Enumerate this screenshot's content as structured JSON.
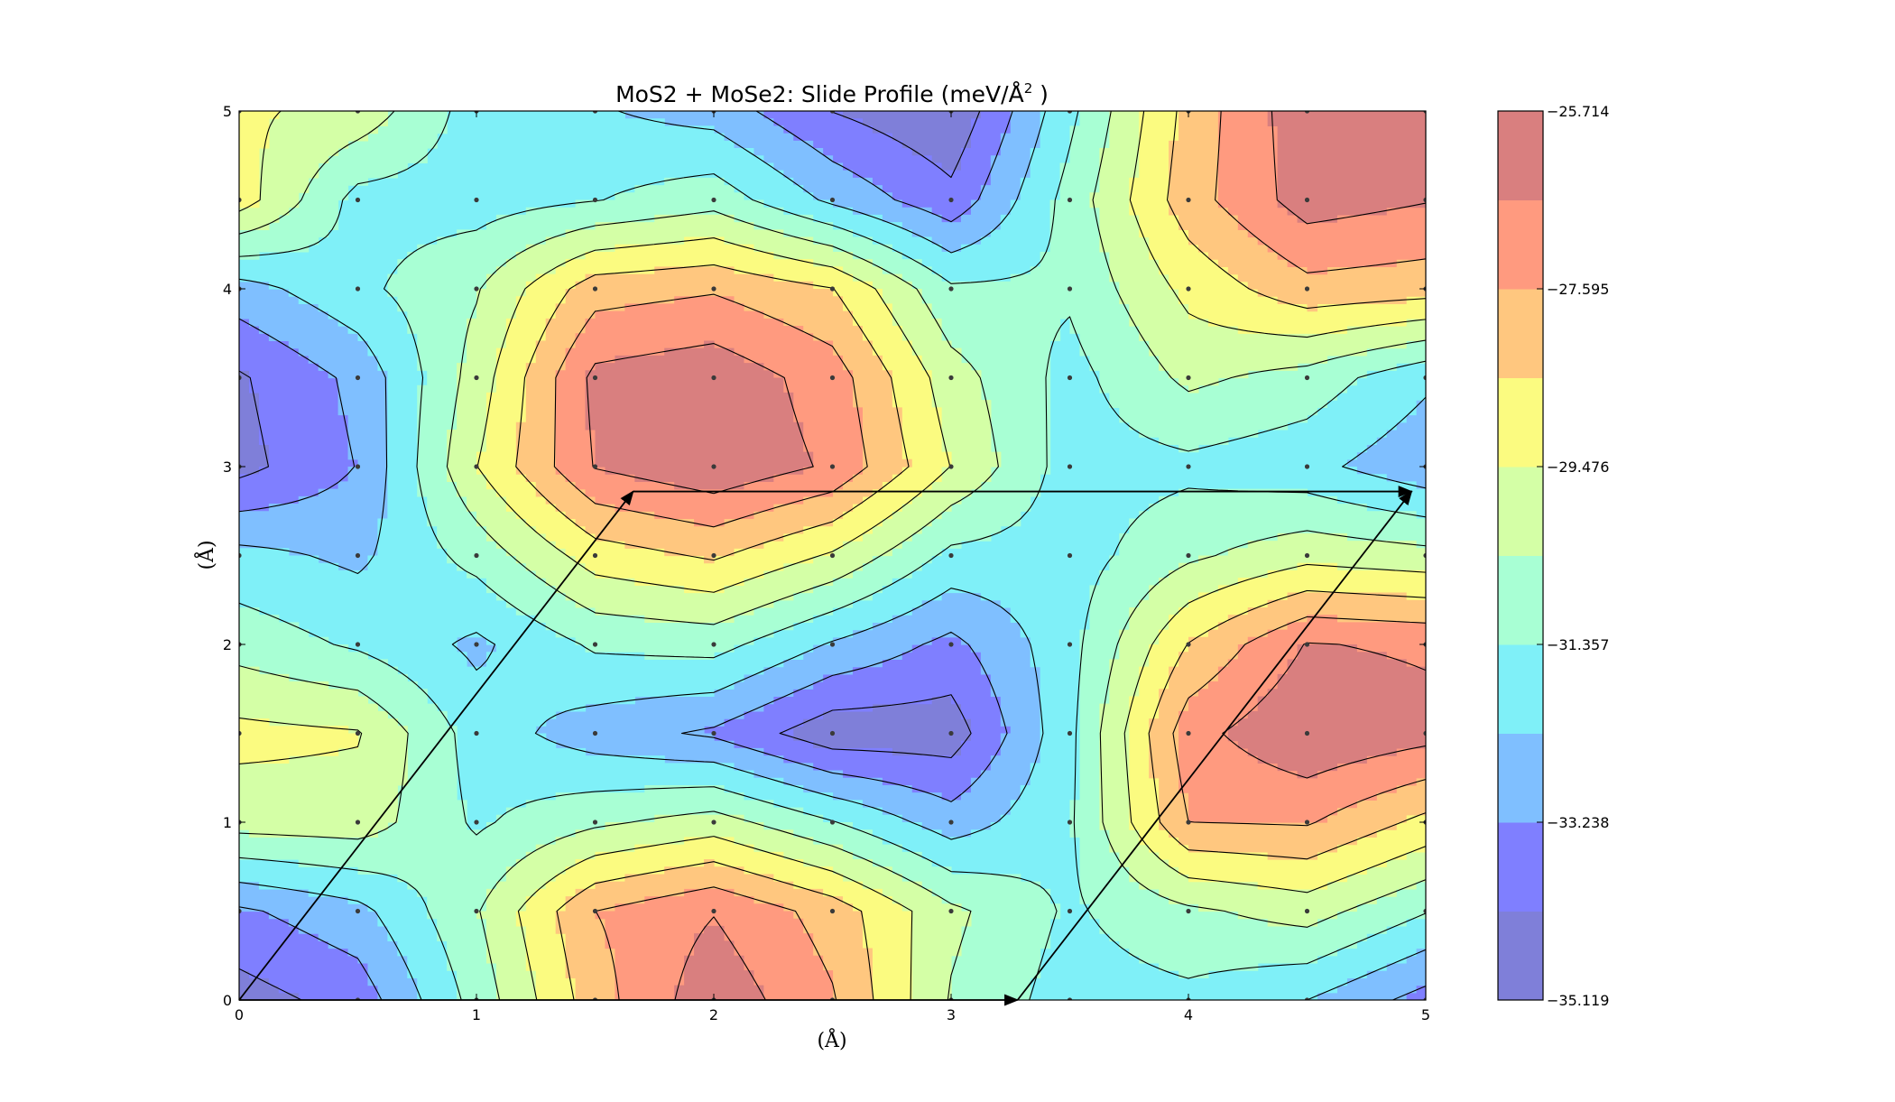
{
  "chart_data": {
    "type": "contour",
    "title": "MoS2 + MoSe2: Slide Profile (meV/Å",
    "title_sup": "2",
    "title_end": " )",
    "xlabel": "(Å)",
    "ylabel": "(Å)",
    "xlim": [
      0,
      5
    ],
    "ylim": [
      0,
      5
    ],
    "x_ticks": [
      "0",
      "1",
      "2",
      "3",
      "4",
      "5"
    ],
    "y_ticks": [
      "0",
      "1",
      "2",
      "3",
      "4",
      "5"
    ],
    "grid_x": [
      0,
      0.5,
      1,
      1.5,
      2,
      2.5,
      3,
      3.5,
      4,
      4.5,
      5
    ],
    "grid_y": [
      0,
      0.5,
      1,
      1.5,
      2,
      2.5,
      3,
      3.5,
      4,
      4.5,
      5
    ],
    "z": [
      [
        -34.6,
        -33.8,
        -31.0,
        -28.0,
        -26.0,
        -27.5,
        -30.5,
        -31.8,
        -31.6,
        -32.3,
        -33.6
      ],
      [
        -33.4,
        -32.6,
        -30.5,
        -27.6,
        -26.7,
        -28.0,
        -30.2,
        -31.5,
        -30.6,
        -30.0,
        -31.3
      ],
      [
        -30.0,
        -29.9,
        -31.5,
        -30.6,
        -30.0,
        -31.3,
        -32.8,
        -31.5,
        -27.6,
        -27.5,
        -28.8
      ],
      [
        -29.2,
        -29.4,
        -31.8,
        -32.8,
        -33.4,
        -34.8,
        -34.7,
        -31.6,
        -27.0,
        -25.8,
        -26.3
      ],
      [
        -30.8,
        -31.5,
        -32.5,
        -31.2,
        -31.0,
        -32.4,
        -33.5,
        -31.7,
        -28.5,
        -26.6,
        -26.8
      ],
      [
        -32.0,
        -32.5,
        -31.0,
        -29.0,
        -28.4,
        -29.6,
        -31.6,
        -31.8,
        -30.6,
        -29.8,
        -30.1
      ],
      [
        -34.5,
        -33.2,
        -29.5,
        -26.6,
        -25.9,
        -26.8,
        -29.5,
        -31.8,
        -31.6,
        -32.0,
        -33.0
      ],
      [
        -34.3,
        -33.0,
        -30.0,
        -26.4,
        -26.0,
        -27.1,
        -30.0,
        -31.7,
        -30.2,
        -30.8,
        -32.1
      ],
      [
        -32.7,
        -31.6,
        -30.5,
        -28.0,
        -27.7,
        -28.5,
        -31.2,
        -31.2,
        -29.2,
        -27.9,
        -28.1
      ],
      [
        -29.0,
        -31.7,
        -31.8,
        -31.4,
        -30.8,
        -32.5,
        -33.9,
        -31.0,
        -28.0,
        -26.2,
        -26.6
      ],
      [
        -29.3,
        -29.8,
        -31.8,
        -32.2,
        -32.7,
        -34.2,
        -35.0,
        -31.6,
        -28.2,
        -26.0,
        -25.8
      ]
    ],
    "levels": [
      -35.119,
      -34.1789,
      -33.238,
      -32.2975,
      -31.357,
      -30.4165,
      -29.476,
      -28.5355,
      -27.595,
      -26.6545,
      -25.714
    ],
    "level_colors": [
      "#7f7fd9",
      "#7f7fff",
      "#7fbfff",
      "#7ff0f8",
      "#a8ffd4",
      "#d4ffa6",
      "#fbfb80",
      "#ffc77f",
      "#ff9a7f",
      "#d97f7f"
    ],
    "colorbar": {
      "tick_labels": [
        "−35.119",
        "−33.238",
        "−31.357",
        "−29.476",
        "−27.595",
        "−25.714"
      ],
      "tick_values": [
        -35.119,
        -33.238,
        -31.357,
        -29.476,
        -27.595,
        -25.714
      ]
    },
    "arrows": [
      {
        "from": [
          0,
          0
        ],
        "to": [
          3.28,
          0
        ]
      },
      {
        "from": [
          0,
          0
        ],
        "to": [
          1.66,
          2.86
        ]
      },
      {
        "from": [
          1.66,
          2.86
        ],
        "to": [
          4.94,
          2.86
        ]
      },
      {
        "from": [
          3.28,
          0
        ],
        "to": [
          4.94,
          2.86
        ]
      }
    ]
  }
}
